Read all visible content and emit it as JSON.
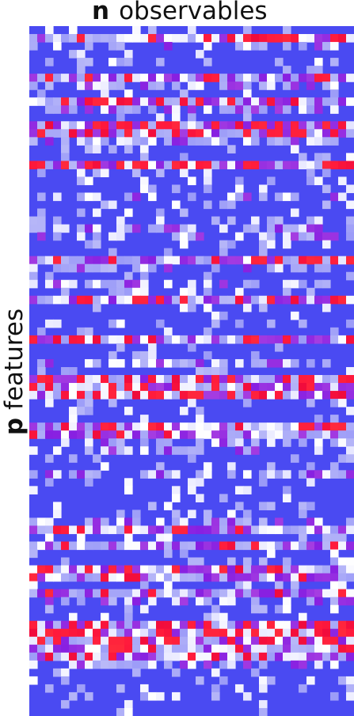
{
  "top_label": {
    "symbol": "n",
    "text": "observables"
  },
  "side_label": {
    "symbol": "p",
    "text": "features"
  },
  "heatmap": {
    "colors": {
      "base": "#4a4af2",
      "mid": "#b8b8f7",
      "white": "#f4f4ff",
      "red": "#ff1a3c",
      "purple": "#9a2ee0"
    }
  }
}
